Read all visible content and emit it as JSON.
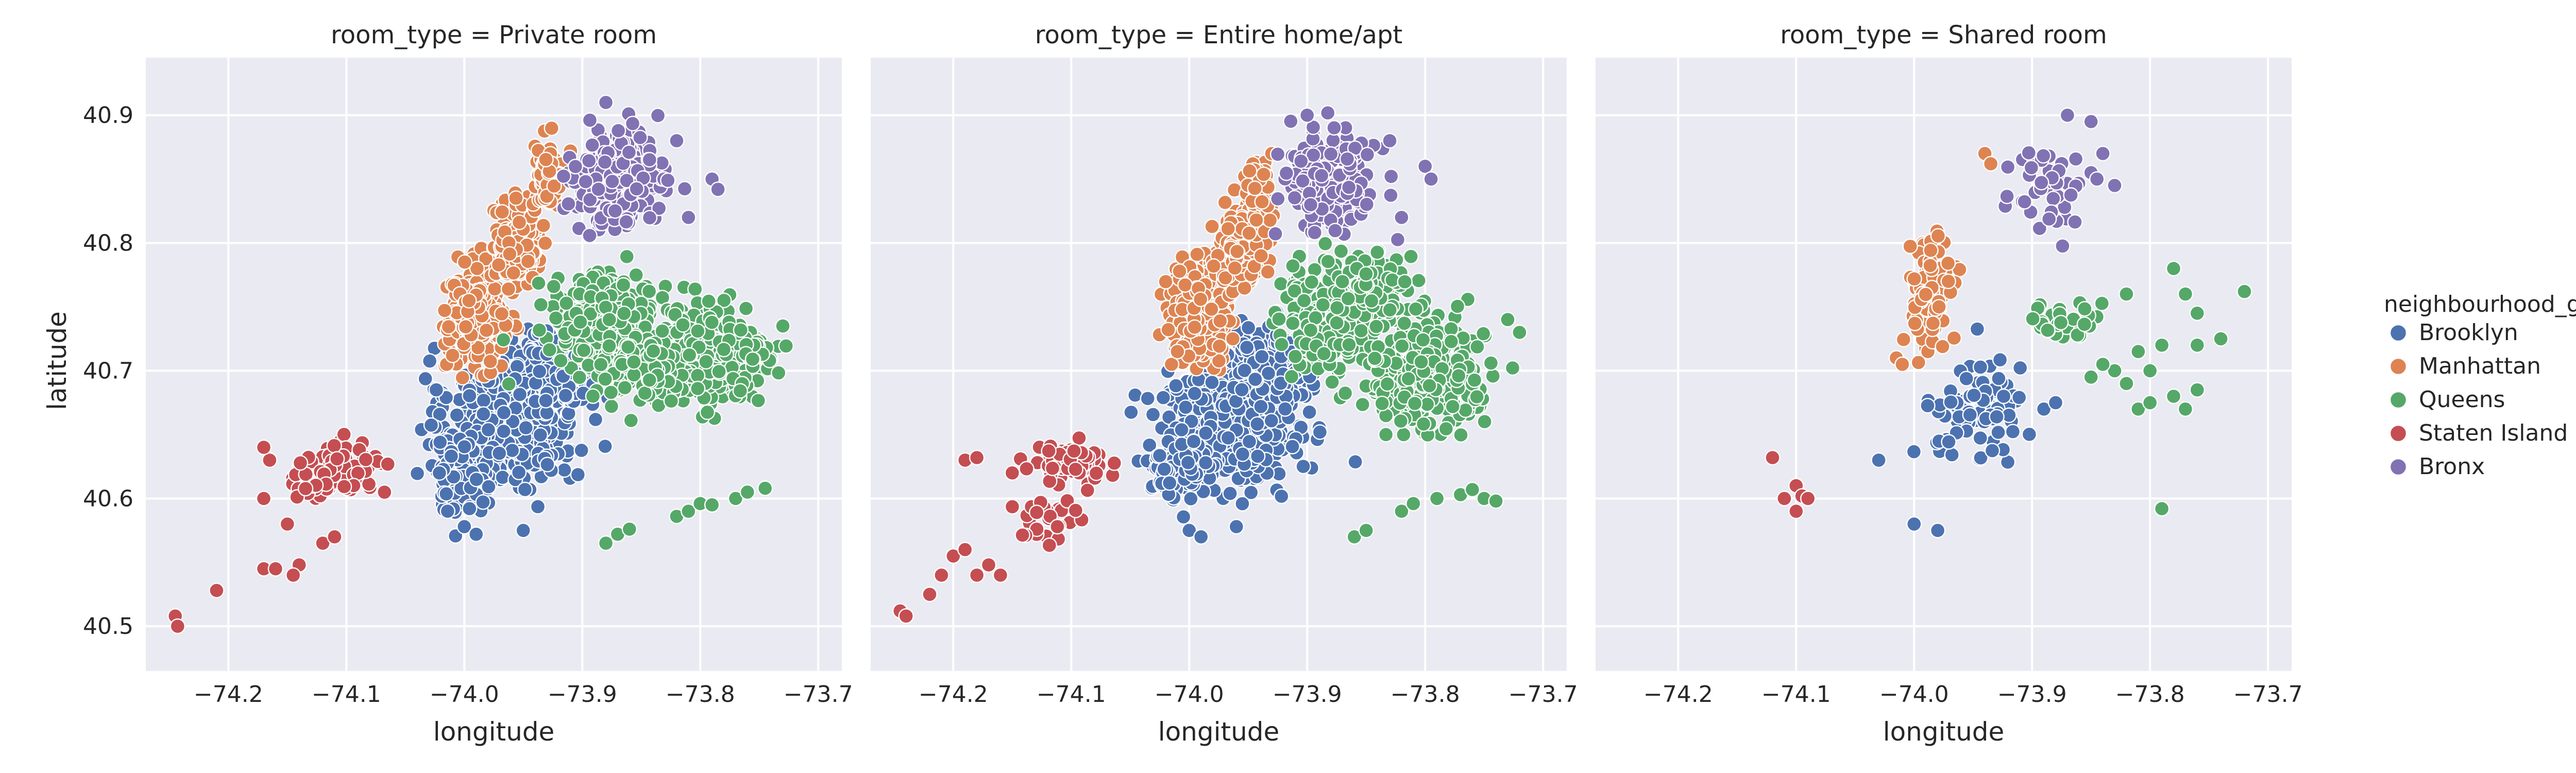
{
  "chart_data": {
    "type": "scatter",
    "xlabel": "longitude",
    "ylabel": "latitude",
    "xlim": [
      -74.27,
      -73.68
    ],
    "ylim": [
      40.465,
      40.945
    ],
    "xticks": [
      -74.2,
      -74.1,
      -74.0,
      -73.9,
      -73.8,
      -73.7
    ],
    "xtick_labels": [
      "−74.2",
      "−74.1",
      "−74.0",
      "−73.9",
      "−73.8",
      "−73.7"
    ],
    "yticks": [
      40.5,
      40.6,
      40.7,
      40.8,
      40.9
    ],
    "ytick_labels": [
      "40.5",
      "40.6",
      "40.7",
      "40.8",
      "40.9"
    ],
    "grid": true,
    "legend_placement": "right",
    "legend": {
      "title": "neighbourhood_group",
      "entries": [
        {
          "name": "Brooklyn",
          "color": "#4c72b0"
        },
        {
          "name": "Manhattan",
          "color": "#dd8452"
        },
        {
          "name": "Queens",
          "color": "#55a868"
        },
        {
          "name": "Staten Island",
          "color": "#c44e52"
        },
        {
          "name": "Bronx",
          "color": "#8172b3"
        }
      ]
    },
    "panels": [
      {
        "title": "room_type = Private room",
        "series": [
          {
            "name": "Brooklyn",
            "clusters": [
              {
                "center": [
                  -73.96,
                  40.665
                ],
                "spread": [
                  0.045,
                  0.045
                ],
                "n": 520
              },
              {
                "center": [
                  -74.005,
                  40.62
                ],
                "spread": [
                  0.02,
                  0.025
                ],
                "n": 110
              },
              {
                "center": [
                  -73.92,
                  40.7
                ],
                "spread": [
                  0.03,
                  0.03
                ],
                "n": 140
              }
            ],
            "points": [
              [
                -74.0,
                40.578
              ],
              [
                -73.99,
                40.572
              ],
              [
                -73.95,
                40.575
              ]
            ]
          },
          {
            "name": "Manhattan",
            "clusters": [
              {
                "center": [
                  -73.99,
                  40.745
                ],
                "spread": [
                  0.02,
                  0.03
                ],
                "n": 320
              },
              {
                "center": [
                  -73.955,
                  40.8
                ],
                "spread": [
                  0.015,
                  0.025
                ],
                "n": 200
              },
              {
                "center": [
                  -73.93,
                  40.85
                ],
                "spread": [
                  0.01,
                  0.02
                ],
                "n": 80
              }
            ],
            "points": [
              [
                -74.015,
                40.705
              ],
              [
                -74.01,
                40.712
              ],
              [
                -73.91,
                40.872
              ]
            ]
          },
          {
            "name": "Queens",
            "clusters": [
              {
                "center": [
                  -73.88,
                  40.74
                ],
                "spread": [
                  0.035,
                  0.03
                ],
                "n": 300
              },
              {
                "center": [
                  -73.79,
                  40.71
                ],
                "spread": [
                  0.04,
                  0.035
                ],
                "n": 300
              },
              {
                "center": [
                  -73.85,
                  40.7
                ],
                "spread": [
                  0.03,
                  0.02
                ],
                "n": 120
              }
            ],
            "points": [
              [
                -73.88,
                40.565
              ],
              [
                -73.87,
                40.572
              ],
              [
                -73.86,
                40.576
              ],
              [
                -73.82,
                40.586
              ],
              [
                -73.81,
                40.59
              ],
              [
                -73.8,
                40.596
              ],
              [
                -73.79,
                40.595
              ],
              [
                -73.77,
                40.6
              ],
              [
                -73.76,
                40.605
              ],
              [
                -73.745,
                40.608
              ],
              [
                -73.73,
                40.735
              ]
            ]
          },
          {
            "name": "Staten Island",
            "clusters": [
              {
                "center": [
                  -74.1,
                  40.625
                ],
                "spread": [
                  0.025,
                  0.015
                ],
                "n": 60
              },
              {
                "center": [
                  -74.13,
                  40.615
                ],
                "spread": [
                  0.02,
                  0.015
                ],
                "n": 20
              }
            ],
            "points": [
              [
                -74.245,
                40.508
              ],
              [
                -74.243,
                40.5
              ],
              [
                -74.21,
                40.528
              ],
              [
                -74.17,
                40.545
              ],
              [
                -74.16,
                40.545
              ],
              [
                -74.14,
                40.548
              ],
              [
                -74.145,
                40.54
              ],
              [
                -74.12,
                40.565
              ],
              [
                -74.11,
                40.57
              ],
              [
                -74.15,
                40.58
              ],
              [
                -74.17,
                40.6
              ],
              [
                -74.165,
                40.63
              ],
              [
                -74.17,
                40.64
              ]
            ]
          },
          {
            "name": "Bronx",
            "clusters": [
              {
                "center": [
                  -73.87,
                  40.85
                ],
                "spread": [
                  0.03,
                  0.03
                ],
                "n": 260
              }
            ],
            "points": [
              [
                -73.79,
                40.85
              ],
              [
                -73.785,
                40.842
              ],
              [
                -73.81,
                40.82
              ],
              [
                -73.82,
                40.88
              ],
              [
                -73.88,
                40.91
              ]
            ]
          }
        ]
      },
      {
        "title": "room_type = Entire home/apt",
        "series": [
          {
            "name": "Brooklyn",
            "clusters": [
              {
                "center": [
                  -73.96,
                  40.665
                ],
                "spread": [
                  0.045,
                  0.045
                ],
                "n": 560
              },
              {
                "center": [
                  -74.01,
                  40.625
                ],
                "spread": [
                  0.02,
                  0.02
                ],
                "n": 120
              },
              {
                "center": [
                  -73.93,
                  40.7
                ],
                "spread": [
                  0.025,
                  0.025
                ],
                "n": 150
              }
            ],
            "points": [
              [
                -74.0,
                40.575
              ],
              [
                -73.99,
                40.57
              ],
              [
                -73.96,
                40.578
              ]
            ]
          },
          {
            "name": "Manhattan",
            "clusters": [
              {
                "center": [
                  -73.99,
                  40.745
                ],
                "spread": [
                  0.02,
                  0.03
                ],
                "n": 340
              },
              {
                "center": [
                  -73.955,
                  40.8
                ],
                "spread": [
                  0.015,
                  0.025
                ],
                "n": 200
              },
              {
                "center": [
                  -73.94,
                  40.84
                ],
                "spread": [
                  0.01,
                  0.02
                ],
                "n": 70
              }
            ],
            "points": [
              [
                -74.015,
                40.705
              ],
              [
                -74.01,
                40.715
              ],
              [
                -73.93,
                40.87
              ]
            ]
          },
          {
            "name": "Queens",
            "clusters": [
              {
                "center": [
                  -73.88,
                  40.74
                ],
                "spread": [
                  0.035,
                  0.03
                ],
                "n": 280
              },
              {
                "center": [
                  -73.8,
                  40.7
                ],
                "spread": [
                  0.04,
                  0.035
                ],
                "n": 320
              },
              {
                "center": [
                  -73.84,
                  40.77
                ],
                "spread": [
                  0.025,
                  0.02
                ],
                "n": 80
              }
            ],
            "points": [
              [
                -73.86,
                40.57
              ],
              [
                -73.85,
                40.575
              ],
              [
                -73.82,
                40.59
              ],
              [
                -73.81,
                40.596
              ],
              [
                -73.79,
                40.6
              ],
              [
                -73.77,
                40.603
              ],
              [
                -73.76,
                40.607
              ],
              [
                -73.75,
                40.6
              ],
              [
                -73.74,
                40.598
              ],
              [
                -73.73,
                40.74
              ],
              [
                -73.72,
                40.73
              ]
            ]
          },
          {
            "name": "Staten Island",
            "clusters": [
              {
                "center": [
                  -74.1,
                  40.625
                ],
                "spread": [
                  0.025,
                  0.015
                ],
                "n": 70
              },
              {
                "center": [
                  -74.12,
                  40.58
                ],
                "spread": [
                  0.025,
                  0.015
                ],
                "n": 30
              }
            ],
            "points": [
              [
                -74.245,
                40.512
              ],
              [
                -74.24,
                40.508
              ],
              [
                -74.22,
                40.525
              ],
              [
                -74.21,
                40.54
              ],
              [
                -74.2,
                40.555
              ],
              [
                -74.19,
                40.56
              ],
              [
                -74.18,
                40.54
              ],
              [
                -74.17,
                40.548
              ],
              [
                -74.16,
                40.54
              ],
              [
                -74.19,
                40.63
              ],
              [
                -74.18,
                40.632
              ],
              [
                -74.15,
                40.62
              ]
            ]
          },
          {
            "name": "Bronx",
            "clusters": [
              {
                "center": [
                  -73.88,
                  40.85
                ],
                "spread": [
                  0.03,
                  0.03
                ],
                "n": 220
              }
            ],
            "points": [
              [
                -73.8,
                40.86
              ],
              [
                -73.795,
                40.85
              ],
              [
                -73.82,
                40.82
              ],
              [
                -73.83,
                40.88
              ],
              [
                -73.9,
                40.9
              ]
            ]
          }
        ]
      },
      {
        "title": "room_type = Shared room",
        "series": [
          {
            "name": "Brooklyn",
            "clusters": [
              {
                "center": [
                  -73.95,
                  40.67
                ],
                "spread": [
                  0.035,
                  0.035
                ],
                "n": 95
              }
            ],
            "points": [
              [
                -74.0,
                40.58
              ],
              [
                -73.98,
                40.575
              ],
              [
                -74.03,
                40.63
              ],
              [
                -73.89,
                40.67
              ],
              [
                -73.88,
                40.675
              ]
            ]
          },
          {
            "name": "Manhattan",
            "clusters": [
              {
                "center": [
                  -73.985,
                  40.76
                ],
                "spread": [
                  0.015,
                  0.035
                ],
                "n": 95
              }
            ],
            "points": [
              [
                -74.015,
                40.71
              ],
              [
                -74.01,
                40.705
              ],
              [
                -73.94,
                40.87
              ],
              [
                -73.935,
                40.862
              ]
            ]
          },
          {
            "name": "Queens",
            "clusters": [
              {
                "center": [
                  -73.87,
                  40.74
                ],
                "spread": [
                  0.025,
                  0.015
                ],
                "n": 30
              }
            ],
            "points": [
              [
                -73.76,
                40.745
              ],
              [
                -73.77,
                40.76
              ],
              [
                -73.79,
                40.72
              ],
              [
                -73.8,
                40.7
              ],
              [
                -73.81,
                40.715
              ],
              [
                -73.82,
                40.69
              ],
              [
                -73.83,
                40.7
              ],
              [
                -73.84,
                40.705
              ],
              [
                -73.85,
                40.695
              ],
              [
                -73.81,
                40.67
              ],
              [
                -73.78,
                40.68
              ],
              [
                -73.77,
                40.67
              ],
              [
                -73.76,
                40.72
              ],
              [
                -73.74,
                40.725
              ],
              [
                -73.78,
                40.78
              ],
              [
                -73.72,
                40.762
              ],
              [
                -73.79,
                40.592
              ],
              [
                -73.82,
                40.76
              ],
              [
                -73.8,
                40.675
              ],
              [
                -73.76,
                40.685
              ]
            ]
          },
          {
            "name": "Staten Island",
            "clusters": [],
            "points": [
              [
                -74.12,
                40.632
              ],
              [
                -74.1,
                40.61
              ],
              [
                -74.095,
                40.602
              ],
              [
                -74.09,
                40.6
              ],
              [
                -74.1,
                40.59
              ],
              [
                -74.11,
                40.6
              ]
            ]
          },
          {
            "name": "Bronx",
            "clusters": [
              {
                "center": [
                  -73.89,
                  40.84
                ],
                "spread": [
                  0.03,
                  0.03
                ],
                "n": 40
              }
            ],
            "points": [
              [
                -73.85,
                40.855
              ],
              [
                -73.845,
                40.85
              ],
              [
                -73.84,
                40.87
              ],
              [
                -73.83,
                40.845
              ],
              [
                -73.85,
                40.895
              ],
              [
                -73.87,
                40.9
              ]
            ]
          }
        ]
      }
    ]
  }
}
